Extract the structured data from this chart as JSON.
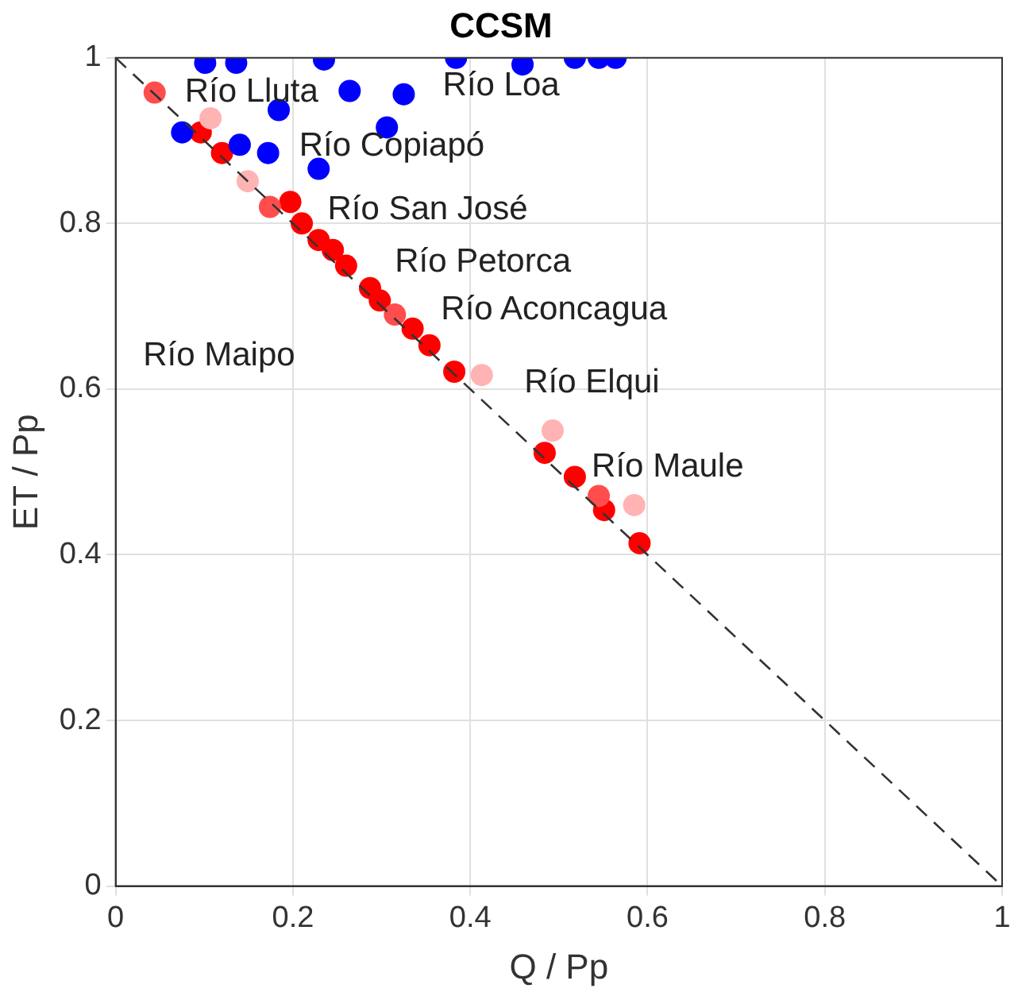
{
  "chart_data": {
    "type": "scatter",
    "title": "CCSM",
    "xlabel": "Q / Pp",
    "ylabel": "ET / Pp",
    "xlim": [
      0,
      1
    ],
    "ylim": [
      0,
      1
    ],
    "xticks": [
      0,
      0.2,
      0.4,
      0.6,
      0.8,
      1
    ],
    "yticks": [
      0,
      0.2,
      0.4,
      0.6,
      0.8,
      1
    ],
    "grid": true,
    "legend": false,
    "marker": "circle",
    "series": [
      {
        "type": "line",
        "color": "#333333",
        "line_style": "dashed",
        "marker": "none",
        "x": [
          0,
          1
        ],
        "values": [
          1,
          0
        ]
      },
      {
        "color": "#0000ff",
        "x": [
          0.101,
          0.136,
          0.235,
          0.264,
          0.325,
          0.384,
          0.459,
          0.518,
          0.545,
          0.564,
          0.075,
          0.14,
          0.172,
          0.184,
          0.306,
          0.229
        ],
        "values": [
          0.994,
          0.994,
          0.998,
          0.96,
          0.956,
          1.0,
          0.992,
          1.0,
          1.0,
          1.0,
          0.91,
          0.895,
          0.885,
          0.937,
          0.916,
          0.866
        ]
      },
      {
        "color": "#ffb3b3",
        "x": [
          0.107,
          0.149,
          0.413,
          0.493,
          0.585
        ],
        "values": [
          0.927,
          0.851,
          0.617,
          0.55,
          0.46
        ]
      },
      {
        "color": "#ff4d4d",
        "x": [
          0.044,
          0.174,
          0.315,
          0.545
        ],
        "values": [
          0.958,
          0.82,
          0.69,
          0.471
        ]
      },
      {
        "color": "#ff0000",
        "x": [
          0.096,
          0.12,
          0.197,
          0.21,
          0.229,
          0.245,
          0.26,
          0.287,
          0.298,
          0.335,
          0.354,
          0.382,
          0.484,
          0.518,
          0.551,
          0.591
        ],
        "values": [
          0.91,
          0.885,
          0.826,
          0.8,
          0.78,
          0.768,
          0.749,
          0.722,
          0.707,
          0.673,
          0.653,
          0.621,
          0.523,
          0.494,
          0.454,
          0.414
        ]
      }
    ],
    "annotations": [
      "Río Lluta",
      "Río Loa",
      "Río Copiapó",
      "Río San José",
      "Río Petorca",
      "Río Aconcagua",
      "Río Maipo",
      "Río Elqui",
      "Río Maule"
    ]
  }
}
